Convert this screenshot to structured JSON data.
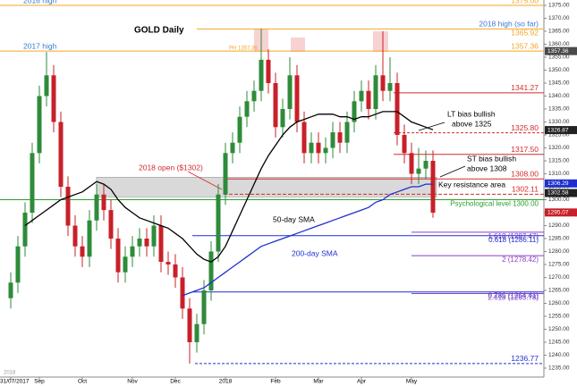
{
  "chart_data": {
    "type": "candlestick",
    "title": "GOLD Daily",
    "categories": [
      "31/07/2017",
      null,
      null,
      null,
      "Sep",
      null,
      null,
      null,
      null,
      null,
      "Oct",
      null,
      null,
      null,
      null,
      null,
      null,
      "Nov",
      null,
      null,
      null,
      null,
      null,
      "Dec",
      null,
      null,
      null,
      null,
      null,
      null,
      "2018",
      null,
      null,
      null,
      null,
      null,
      null,
      "Feb",
      null,
      null,
      null,
      null,
      null,
      "Mar",
      null,
      null,
      null,
      null,
      null,
      "Apr",
      null,
      null,
      null,
      null,
      null,
      null,
      "May",
      null,
      null,
      null
    ],
    "ohlc": [
      [
        1262,
        1272,
        1258,
        1268
      ],
      [
        1268,
        1286,
        1264,
        1282
      ],
      [
        1282,
        1299,
        1278,
        1295
      ],
      [
        1295,
        1322,
        1291,
        1318
      ],
      [
        1318,
        1344,
        1314,
        1340
      ],
      [
        1340,
        1357,
        1336,
        1348
      ],
      [
        1348,
        1352,
        1326,
        1330
      ],
      [
        1330,
        1334,
        1301,
        1305
      ],
      [
        1305,
        1309,
        1286,
        1290
      ],
      [
        1290,
        1294,
        1278,
        1282
      ],
      [
        1282,
        1286,
        1274,
        1278
      ],
      [
        1278,
        1296,
        1274,
        1292
      ],
      [
        1292,
        1306,
        1288,
        1302
      ],
      [
        1302,
        1306,
        1292,
        1296
      ],
      [
        1296,
        1300,
        1281,
        1285
      ],
      [
        1285,
        1289,
        1268,
        1272
      ],
      [
        1272,
        1282,
        1268,
        1278
      ],
      [
        1278,
        1286,
        1274,
        1282
      ],
      [
        1282,
        1289,
        1278,
        1285
      ],
      [
        1285,
        1289,
        1278,
        1282
      ],
      [
        1282,
        1294,
        1278,
        1290
      ],
      [
        1290,
        1294,
        1272,
        1276
      ],
      [
        1276,
        1280,
        1271,
        1275
      ],
      [
        1275,
        1279,
        1266,
        1270
      ],
      [
        1270,
        1274,
        1254,
        1258
      ],
      [
        1258,
        1262,
        1236.77,
        1245
      ],
      [
        1245,
        1256,
        1241,
        1252
      ],
      [
        1252,
        1269,
        1248,
        1265
      ],
      [
        1265,
        1284,
        1261,
        1280
      ],
      [
        1280,
        1306,
        1276,
        1302
      ],
      [
        1302,
        1322,
        1298,
        1318
      ],
      [
        1318,
        1326,
        1314,
        1322
      ],
      [
        1322,
        1336,
        1318,
        1332
      ],
      [
        1332,
        1342,
        1328,
        1338
      ],
      [
        1338,
        1346,
        1334,
        1342
      ],
      [
        1342,
        1366,
        1338,
        1354
      ],
      [
        1354,
        1358,
        1341,
        1345
      ],
      [
        1345,
        1349,
        1324,
        1328
      ],
      [
        1328,
        1339,
        1324,
        1335
      ],
      [
        1335,
        1355,
        1331,
        1348
      ],
      [
        1348,
        1352,
        1326,
        1330
      ],
      [
        1330,
        1334,
        1314,
        1318
      ],
      [
        1318,
        1326,
        1314,
        1322
      ],
      [
        1322,
        1326,
        1314,
        1318
      ],
      [
        1318,
        1324,
        1314,
        1320
      ],
      [
        1320,
        1330,
        1316,
        1326
      ],
      [
        1326,
        1330,
        1318,
        1322
      ],
      [
        1322,
        1334,
        1318,
        1330
      ],
      [
        1330,
        1342,
        1326,
        1338
      ],
      [
        1338,
        1346,
        1334,
        1342
      ],
      [
        1342,
        1346,
        1331,
        1335
      ],
      [
        1335,
        1352,
        1331,
        1348
      ],
      [
        1348,
        1365,
        1338,
        1342
      ],
      [
        1342,
        1355,
        1338,
        1345
      ],
      [
        1345,
        1349,
        1321,
        1325
      ],
      [
        1325,
        1329,
        1314,
        1318
      ],
      [
        1318,
        1322,
        1306,
        1310
      ],
      [
        1310,
        1320,
        1306,
        1312
      ],
      [
        1312,
        1319,
        1308,
        1315
      ],
      [
        1315,
        1319,
        1293,
        1295
      ]
    ],
    "up_color": "#2e8b3a",
    "down_color": "#c8202a",
    "series": [
      {
        "name": "50-day SMA",
        "color": "#000000",
        "values": [
          null,
          null,
          1290,
          1292,
          1294,
          1296,
          1298,
          1300,
          1301,
          1302,
          1303,
          1305,
          1307,
          1306,
          1304,
          1300,
          1297,
          1295,
          1293,
          1292,
          1291,
          1290,
          1289,
          1287,
          1285,
          1282,
          1279,
          1277,
          1276,
          1278,
          1282,
          1288,
          1294,
          1300,
          1306,
          1312,
          1317,
          1321,
          1325,
          1328,
          1330,
          1331,
          1332,
          1333,
          1333,
          1333,
          1332,
          1332,
          1331,
          1332,
          1332,
          1333,
          1334,
          1334,
          1334,
          1332,
          1330,
          1329,
          1328,
          1327
        ]
      },
      {
        "name": "200-day SMA",
        "color": "#1f2fcf",
        "values": [
          null,
          null,
          null,
          null,
          null,
          null,
          null,
          null,
          null,
          null,
          null,
          null,
          null,
          null,
          null,
          null,
          null,
          null,
          null,
          null,
          null,
          null,
          null,
          null,
          1263,
          1264,
          1265,
          1266,
          1268,
          1270,
          1272,
          1274,
          1276,
          1278,
          1280,
          1282,
          1283,
          1284,
          1285,
          1286,
          1287,
          1288,
          1289,
          1290,
          1291,
          1292,
          1293,
          1294,
          1295,
          1296,
          1297,
          1299,
          1300,
          1302,
          1303,
          1304,
          1305,
          1305,
          1306,
          1306
        ]
      }
    ],
    "levels": [
      {
        "value": 1375,
        "value_label": "1375.00",
        "name": "2016 high",
        "color": "#f5a623"
      },
      {
        "value": 1365.92,
        "value_label": "1365.92",
        "name": "2018 high (so far)",
        "color": "#f5a623"
      },
      {
        "value": 1357.36,
        "value_label": "1357.36",
        "name": "2017 high",
        "color": "#f5a623"
      },
      {
        "value": 1341.27,
        "value_label": "1341.27",
        "color": "#d42a2a"
      },
      {
        "value": 1325.8,
        "value_label": "1325.80",
        "color": "#d42a2a"
      },
      {
        "value": 1317.5,
        "value_label": "1317.50",
        "color": "#d42a2a"
      },
      {
        "value": 1308,
        "value_label": "1308.00",
        "color": "#d42a2a"
      },
      {
        "value": 1302.11,
        "value_label": "1302.11",
        "color": "#d42a2a"
      },
      {
        "value": 1300,
        "value_label": "1300.00",
        "name": "Psychological level",
        "color": "#2e9e2e"
      },
      {
        "value": 1287.47,
        "value_label": "(1287.47)",
        "name": "1.618",
        "color": "#8a3fc4"
      },
      {
        "value": 1286.11,
        "value_label": "(1286.11)",
        "name": "0.618",
        "color": "#1f2fcf"
      },
      {
        "value": 1278.42,
        "value_label": "(1278.42)",
        "name": "2",
        "color": "#8a3fc4"
      },
      {
        "value": 1264.41,
        "value_label": "(1264.41)",
        "name": "0.786",
        "color": "#1f2fcf"
      },
      {
        "value": 1263.78,
        "value_label": "(1263.78)",
        "name": "2.618",
        "color": "#8a3fc4"
      },
      {
        "value": 1236.77,
        "value_label": "1236.77",
        "color": "#1f2fcf"
      }
    ],
    "axis_tags": [
      {
        "value": 1357.36,
        "color": "#4a4a4a"
      },
      {
        "value": 1326.87,
        "color": "#222222"
      },
      {
        "value": 1306.29,
        "color": "#1f2fcf"
      },
      {
        "value": 1302.58,
        "color": "#222222"
      },
      {
        "value": 1295.07,
        "color": "#c8202a"
      }
    ],
    "annotations": [
      "LT bias bullish",
      "above 1325",
      "ST bias bullish",
      "above 1308",
      "2018 open ($1302)",
      "Key resistance area",
      "PH 1357.36",
      "2018"
    ],
    "ylim": [
      1235,
      1375
    ],
    "yticks": [
      {
        "value": 1235,
        "label": "1235.00"
      },
      {
        "value": 1240,
        "label": "1240.00"
      },
      {
        "value": 1245,
        "label": "1245.00"
      },
      {
        "value": 1250,
        "label": "1250.00"
      },
      {
        "value": 1255,
        "label": "1255.00"
      },
      {
        "value": 1260,
        "label": "1260.00"
      },
      {
        "value": 1265,
        "label": "1265.00"
      },
      {
        "value": 1270,
        "label": "1270.00"
      },
      {
        "value": 1275,
        "label": "1275.00"
      },
      {
        "value": 1280,
        "label": "1280.00"
      },
      {
        "value": 1285,
        "label": "1285.00"
      },
      {
        "value": 1290,
        "label": "1290.00"
      },
      {
        "value": 1295,
        "label": "1295.00"
      },
      {
        "value": 1300,
        "label": "1300.00"
      },
      {
        "value": 1305,
        "label": "1305.00"
      },
      {
        "value": 1310,
        "label": "1310.00"
      },
      {
        "value": 1315,
        "label": "1315.00"
      },
      {
        "value": 1320,
        "label": "1320.00"
      },
      {
        "value": 1325,
        "label": "1325.00"
      },
      {
        "value": 1330,
        "label": "1330.00"
      },
      {
        "value": 1335,
        "label": "1335.00"
      },
      {
        "value": 1340,
        "label": "1340.00"
      },
      {
        "value": 1345,
        "label": "1345.00"
      },
      {
        "value": 1350,
        "label": "1350.00"
      },
      {
        "value": 1355,
        "label": "1355.00"
      },
      {
        "value": 1360,
        "label": "1360.00"
      },
      {
        "value": 1365,
        "label": "1365.00"
      },
      {
        "value": 1370,
        "label": "1370.00"
      },
      {
        "value": 1375,
        "label": "1375.00"
      }
    ]
  }
}
